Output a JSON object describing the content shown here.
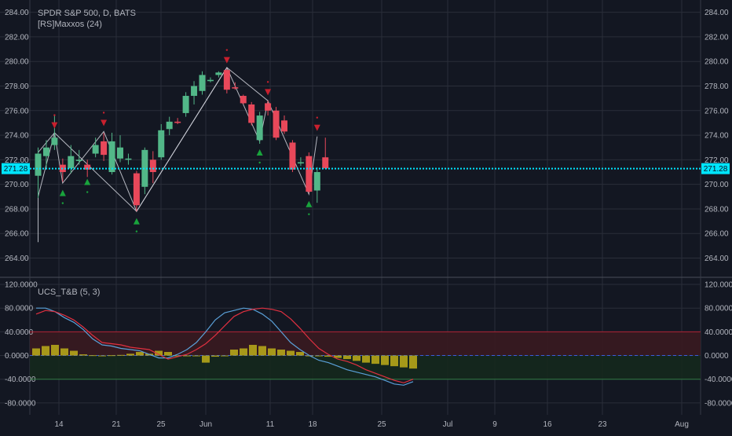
{
  "header": {
    "symbol_line": "SPDR S&P 500, D, BATS",
    "indicator_line": "[RS]Maxxos (24)"
  },
  "oscillator_header": {
    "label": "UCS_T&B (5, 3)"
  },
  "colors": {
    "background": "#131722",
    "grid": "#2a2e39",
    "axis_text": "#b2b5be",
    "up": "#52b788",
    "down": "#e8485a",
    "price_line": "#00e5ff",
    "price_label_bg": "#00e5ff",
    "zigzag": "#d1d4dc",
    "arrow_up": "#19a33c",
    "arrow_down": "#c8202e",
    "osc_bar": "#b5a619",
    "osc_line_a": "#e03040",
    "osc_line_b": "#5aa0d8",
    "ob_zone": "#3a1a20",
    "os_zone": "#15281d"
  },
  "chart_data": [
    {
      "type": "candlestick",
      "title": "SPDR S&P 500, D, BATS",
      "indicator": "[RS]Maxxos (24)",
      "x_tick_labels": [
        "14",
        "21",
        "25",
        "Jun",
        "11",
        "18",
        "25",
        "Jul",
        "9",
        "16",
        "23",
        "Aug"
      ],
      "y_tick_labels": [
        "284.00",
        "282.00",
        "280.00",
        "278.00",
        "276.00",
        "274.00",
        "272.00",
        "270.00",
        "268.00",
        "266.00",
        "264.00"
      ],
      "ylim": [
        262.5,
        285.0
      ],
      "grid": true,
      "last_price_label": "271.28",
      "last_price": 271.28,
      "candles": [
        {
          "o": 270.7,
          "h": 273.0,
          "l": 268.9,
          "c": 272.5
        },
        {
          "o": 272.3,
          "h": 273.6,
          "l": 271.3,
          "c": 273.0
        },
        {
          "o": 273.2,
          "h": 275.6,
          "l": 272.8,
          "c": 273.8
        },
        {
          "o": 271.6,
          "h": 272.1,
          "l": 270.2,
          "c": 271.0
        },
        {
          "o": 271.3,
          "h": 273.2,
          "l": 270.9,
          "c": 272.3
        },
        {
          "o": 271.9,
          "h": 272.8,
          "l": 271.6,
          "c": 272.0
        },
        {
          "o": 271.6,
          "h": 272.0,
          "l": 270.6,
          "c": 271.2
        },
        {
          "o": 272.5,
          "h": 273.8,
          "l": 272.2,
          "c": 273.2
        },
        {
          "o": 273.5,
          "h": 274.2,
          "l": 271.9,
          "c": 272.4
        },
        {
          "o": 271.0,
          "h": 274.2,
          "l": 270.8,
          "c": 273.5
        },
        {
          "o": 272.1,
          "h": 274.0,
          "l": 271.8,
          "c": 273.0
        },
        {
          "o": 272.0,
          "h": 272.5,
          "l": 271.6,
          "c": 272.1
        },
        {
          "o": 270.9,
          "h": 271.1,
          "l": 267.8,
          "c": 268.3
        },
        {
          "o": 269.8,
          "h": 273.0,
          "l": 269.2,
          "c": 272.8
        },
        {
          "o": 272.0,
          "h": 272.7,
          "l": 270.1,
          "c": 271.0
        },
        {
          "o": 272.2,
          "h": 274.9,
          "l": 272.0,
          "c": 274.4
        },
        {
          "o": 274.5,
          "h": 275.5,
          "l": 274.0,
          "c": 275.1
        },
        {
          "o": 275.1,
          "h": 275.4,
          "l": 274.9,
          "c": 275.0
        },
        {
          "o": 275.8,
          "h": 277.5,
          "l": 275.5,
          "c": 277.2
        },
        {
          "o": 277.2,
          "h": 278.4,
          "l": 276.5,
          "c": 278.0
        },
        {
          "o": 277.6,
          "h": 279.2,
          "l": 277.3,
          "c": 278.9
        },
        {
          "o": 278.4,
          "h": 278.7,
          "l": 278.3,
          "c": 278.5
        },
        {
          "o": 278.9,
          "h": 279.2,
          "l": 278.7,
          "c": 279.1
        },
        {
          "o": 279.3,
          "h": 279.4,
          "l": 277.4,
          "c": 277.7
        },
        {
          "o": 277.9,
          "h": 278.3,
          "l": 277.7,
          "c": 277.8
        },
        {
          "o": 277.2,
          "h": 277.3,
          "l": 276.5,
          "c": 276.6
        },
        {
          "o": 276.5,
          "h": 276.7,
          "l": 274.8,
          "c": 275.0
        },
        {
          "o": 273.6,
          "h": 275.9,
          "l": 273.3,
          "c": 275.6
        },
        {
          "o": 276.6,
          "h": 276.8,
          "l": 275.6,
          "c": 276.0
        },
        {
          "o": 276.0,
          "h": 276.3,
          "l": 273.6,
          "c": 273.8
        },
        {
          "o": 275.2,
          "h": 275.6,
          "l": 274.1,
          "c": 274.3
        },
        {
          "o": 273.4,
          "h": 273.6,
          "l": 271.0,
          "c": 271.2
        },
        {
          "o": 271.7,
          "h": 272.2,
          "l": 271.5,
          "c": 271.8
        },
        {
          "o": 272.3,
          "h": 272.6,
          "l": 269.3,
          "c": 269.4
        },
        {
          "o": 269.5,
          "h": 271.4,
          "l": 268.5,
          "c": 271.0
        },
        {
          "o": 272.2,
          "h": 273.8,
          "l": 271.3,
          "c": 271.3
        }
      ],
      "zigzag_lines": [
        [
          [
            0,
            265.3
          ],
          [
            0,
            272.6
          ],
          [
            2,
            274.2
          ],
          [
            3,
            270.1
          ],
          [
            8,
            274.3
          ],
          [
            12,
            267.8
          ],
          [
            23,
            279.5
          ],
          [
            27,
            273.5
          ],
          [
            28,
            276.8
          ],
          [
            33,
            269.2
          ],
          [
            34,
            273.9
          ]
        ],
        [
          [
            0,
            269.0
          ],
          [
            2,
            274.2
          ],
          [
            12,
            267.8
          ],
          [
            23,
            279.5
          ],
          [
            28,
            276.8
          ]
        ]
      ],
      "signal_arrows": [
        {
          "i": 2,
          "dir": "down",
          "v": 274.8
        },
        {
          "i": 3,
          "dir": "up",
          "v": 269.3
        },
        {
          "i": 6,
          "dir": "up",
          "v": 270.2
        },
        {
          "i": 8,
          "dir": "down",
          "v": 275.0
        },
        {
          "i": 12,
          "dir": "up",
          "v": 267.0
        },
        {
          "i": 23,
          "dir": "down",
          "v": 280.1
        },
        {
          "i": 28,
          "dir": "down",
          "v": 277.5
        },
        {
          "i": 27,
          "dir": "up",
          "v": 272.6
        },
        {
          "i": 33,
          "dir": "up",
          "v": 268.4
        },
        {
          "i": 34,
          "dir": "down",
          "v": 274.6
        }
      ]
    },
    {
      "type": "bar+line",
      "title": "UCS_T&B (5, 3)",
      "y_tick_labels": [
        "120.0000",
        "80.0000",
        "40.0000",
        "0.0000",
        "-40.0000",
        "-80.0000"
      ],
      "ylim": [
        -100,
        128
      ],
      "overbought": 40,
      "oversold": -40,
      "grid": true,
      "histogram": [
        12,
        16,
        18,
        12,
        8,
        2,
        0.5,
        -0.5,
        0.5,
        1,
        3,
        6,
        3,
        8,
        6,
        -0.5,
        -0.5,
        -1,
        -12,
        -2,
        -1,
        10,
        12,
        18,
        16,
        12,
        10,
        8,
        6,
        -0.5,
        -1,
        -2,
        -4,
        -6,
        -9,
        -12,
        -14,
        -16,
        -18,
        -20,
        -22
      ],
      "line_a": [
        70,
        76,
        74,
        68,
        60,
        48,
        34,
        22,
        20,
        18,
        14,
        12,
        10,
        2,
        -6,
        -2,
        2,
        10,
        20,
        34,
        50,
        66,
        74,
        78,
        80,
        78,
        74,
        62,
        46,
        28,
        12,
        2,
        -6,
        -10,
        -16,
        -24,
        -30,
        -36,
        -42,
        -46,
        -40
      ],
      "line_b": [
        80,
        80,
        74,
        64,
        56,
        44,
        28,
        18,
        16,
        12,
        10,
        8,
        2,
        -4,
        -4,
        2,
        10,
        22,
        40,
        60,
        72,
        76,
        80,
        78,
        70,
        58,
        40,
        22,
        10,
        0,
        -8,
        -12,
        -18,
        -24,
        -28,
        -32,
        -36,
        -42,
        -48,
        -50,
        -44
      ]
    }
  ]
}
